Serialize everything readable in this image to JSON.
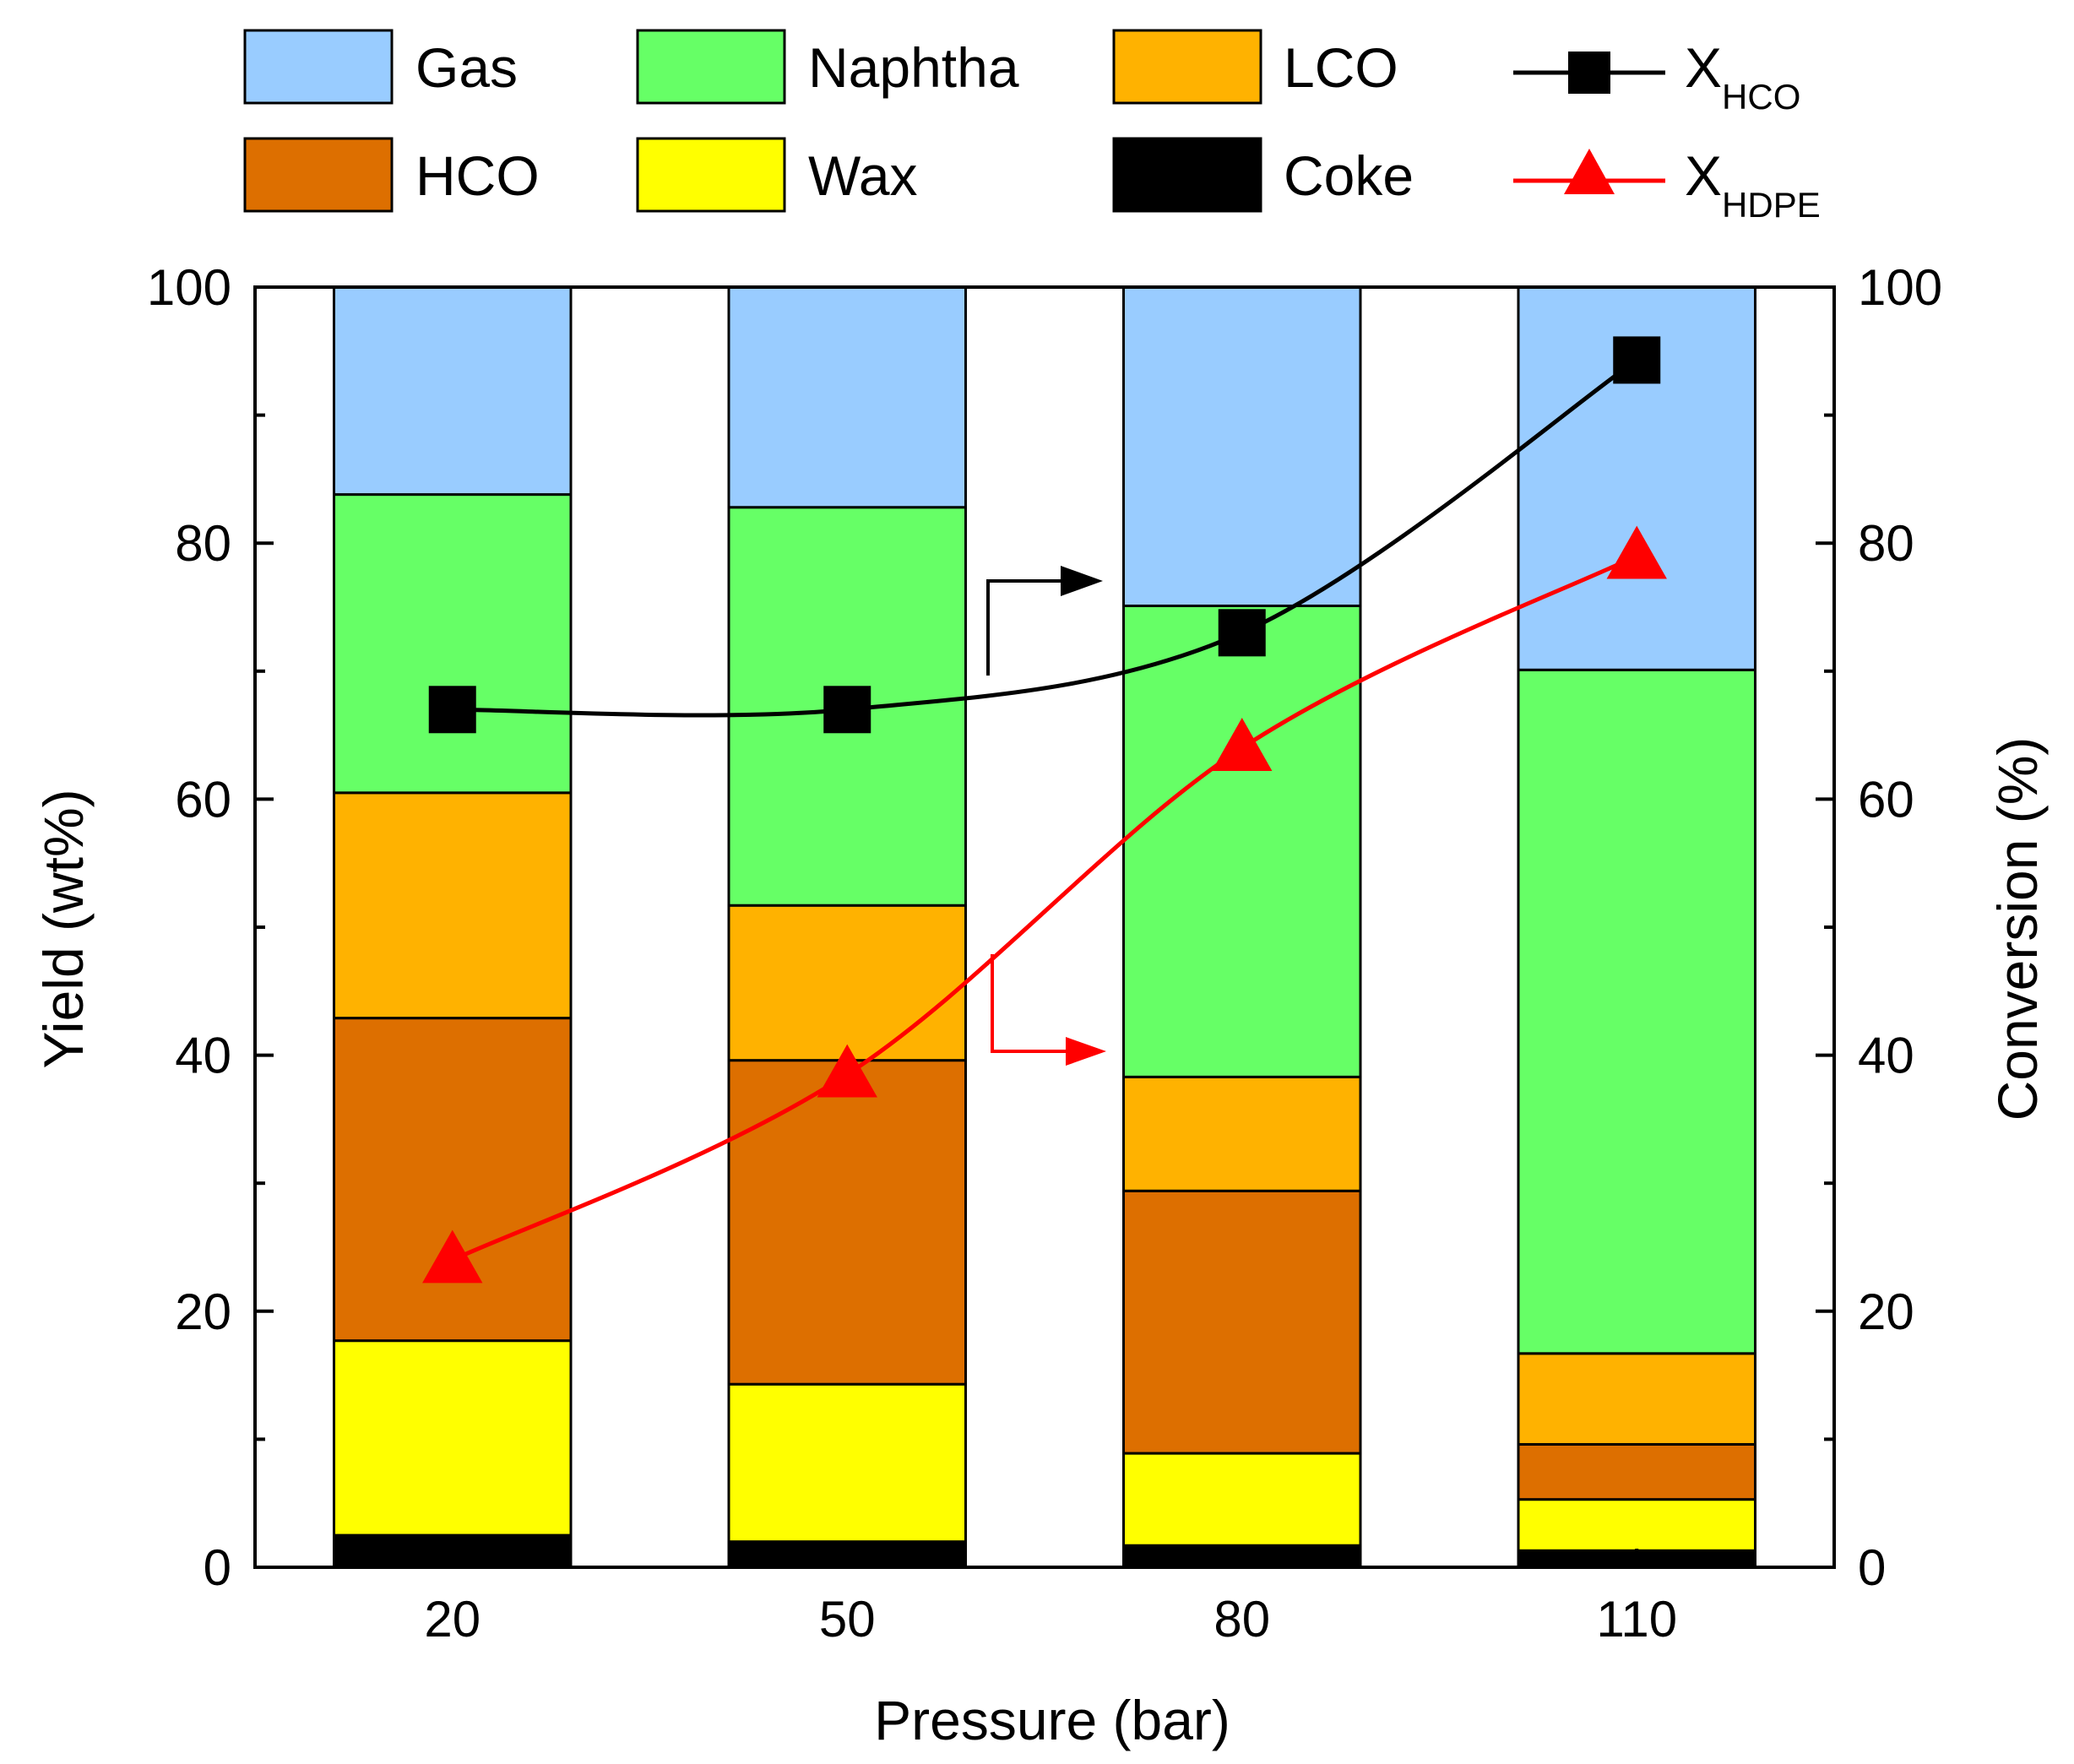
{
  "chart_data": {
    "type": "bar",
    "stacked": true,
    "xlabel": "Pressure (bar)",
    "ylabel": "Yield (wt%)",
    "y2label": "Conversion (%)",
    "categories": [
      "20",
      "50",
      "80",
      "110"
    ],
    "ylim": [
      0,
      100
    ],
    "y2lim": [
      0,
      100
    ],
    "yticks": [
      "0",
      "20",
      "40",
      "60",
      "80",
      "100"
    ],
    "y2ticks": [
      "0",
      "20",
      "40",
      "60",
      "80",
      "100"
    ],
    "series": [
      {
        "key": "coke",
        "name": "Coke",
        "color": "#000000",
        "values": [
          2.5,
          2.0,
          1.7,
          1.3
        ]
      },
      {
        "key": "wax",
        "name": "Wax",
        "color": "#ffff00",
        "values": [
          15.2,
          12.3,
          7.2,
          4.0
        ]
      },
      {
        "key": "hco",
        "name": "HCO",
        "color": "#dd6f00",
        "values": [
          25.2,
          25.3,
          20.5,
          4.3
        ]
      },
      {
        "key": "lco",
        "name": "LCO",
        "color": "#ffb200",
        "values": [
          17.6,
          12.1,
          8.9,
          7.1
        ]
      },
      {
        "key": "naphtha",
        "name": "Naphtha",
        "color": "#66ff66",
        "values": [
          23.3,
          31.1,
          36.8,
          53.4
        ]
      },
      {
        "key": "gas",
        "name": "Gas",
        "color": "#99ccff",
        "values": [
          16.2,
          17.2,
          24.9,
          29.9
        ]
      }
    ],
    "lines": [
      {
        "key": "x_hco",
        "name": "X",
        "subscript": "HCO",
        "axis": "right",
        "marker": "square",
        "color": "#000000",
        "values": [
          67.0,
          67.0,
          73.0,
          94.3
        ]
      },
      {
        "key": "x_hdpe",
        "name": "X",
        "subscript": "HDPE",
        "axis": "right",
        "marker": "triangle",
        "color": "#ff0000",
        "values": [
          24.0,
          38.5,
          64.0,
          79.0
        ]
      }
    ],
    "legend_position": "top"
  }
}
